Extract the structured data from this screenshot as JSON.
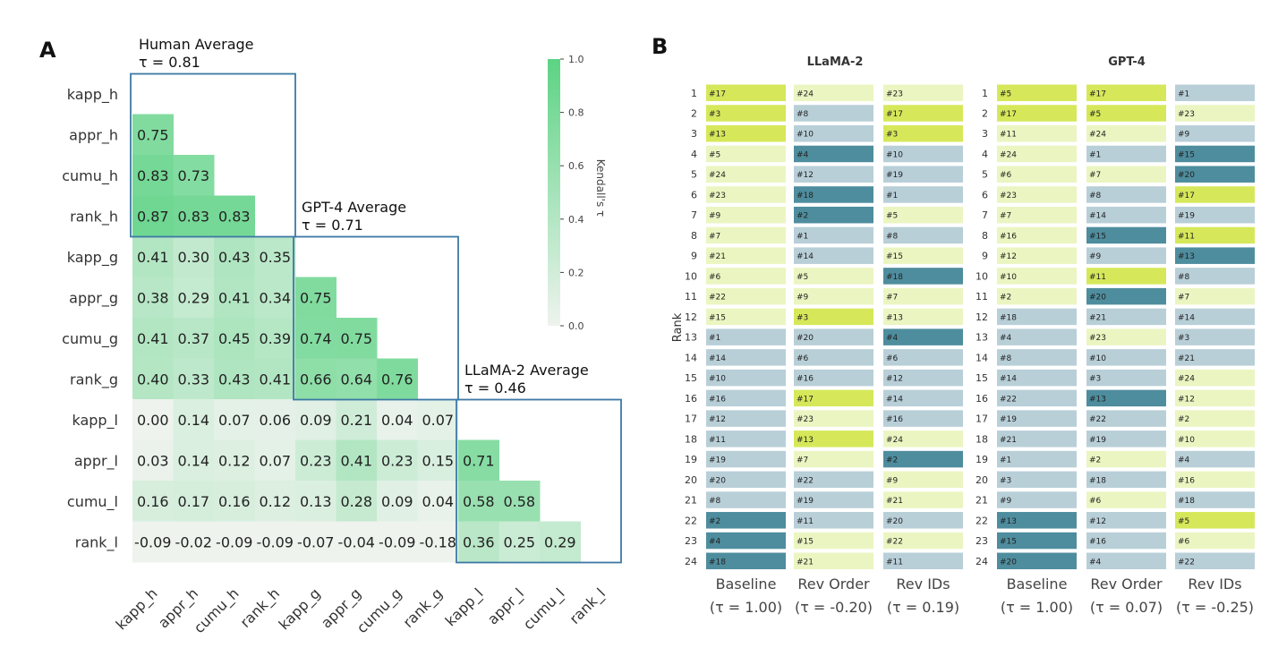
{
  "panels": {
    "a_letter": "A",
    "b_letter": "B"
  },
  "chart_data": [
    {
      "type": "heatmap",
      "panel": "A",
      "labels": [
        "kapp_h",
        "appr_h",
        "cumu_h",
        "rank_h",
        "kapp_g",
        "appr_g",
        "cumu_g",
        "rank_g",
        "kapp_l",
        "appr_l",
        "cumu_l",
        "rank_l"
      ],
      "triangle": "lower-strict",
      "values": [
        [],
        [
          0.75
        ],
        [
          0.83,
          0.73
        ],
        [
          0.87,
          0.83,
          0.83
        ],
        [
          0.41,
          0.3,
          0.43,
          0.35
        ],
        [
          0.38,
          0.29,
          0.41,
          0.34,
          0.75
        ],
        [
          0.41,
          0.37,
          0.45,
          0.39,
          0.74,
          0.75
        ],
        [
          0.4,
          0.33,
          0.43,
          0.41,
          0.66,
          0.64,
          0.76
        ],
        [
          0.0,
          0.14,
          0.07,
          0.06,
          0.09,
          0.21,
          0.04,
          0.07
        ],
        [
          0.03,
          0.14,
          0.12,
          0.07,
          0.23,
          0.41,
          0.23,
          0.15,
          0.71
        ],
        [
          0.16,
          0.17,
          0.16,
          0.12,
          0.13,
          0.28,
          0.09,
          0.04,
          0.58,
          0.58
        ],
        [
          -0.09,
          -0.02,
          -0.09,
          -0.09,
          -0.07,
          -0.04,
          -0.09,
          -0.18,
          0.36,
          0.25,
          0.29
        ]
      ],
      "colorbar": {
        "label": "Kendall's τ",
        "range": [
          0.0,
          1.0
        ],
        "ticks": [
          "0.0",
          "0.2",
          "0.4",
          "0.6",
          "0.8",
          "1.0"
        ],
        "color_low": "#eef3ee",
        "color_high": "#5cd384"
      },
      "groups": [
        {
          "title": "Human Average",
          "tau": "τ = 0.81",
          "rows": [
            0,
            3
          ]
        },
        {
          "title": "GPT-4 Average",
          "tau": "τ = 0.71",
          "rows": [
            4,
            7
          ]
        },
        {
          "title": "LLaMA-2 Average",
          "tau": "τ = 0.46",
          "rows": [
            8,
            11
          ]
        }
      ],
      "box_color": "#3c78a4"
    },
    {
      "type": "table",
      "panel": "B",
      "ylabel": "Rank",
      "ranks": [
        "1",
        "2",
        "3",
        "4",
        "5",
        "6",
        "7",
        "8",
        "9",
        "10",
        "11",
        "12",
        "13",
        "14",
        "15",
        "16",
        "17",
        "18",
        "19",
        "20",
        "21",
        "22",
        "23",
        "24"
      ],
      "shade_scale": [
        "#ebf5c1",
        "#b8cfd8",
        "#d6e85a",
        "#4e8d9e"
      ],
      "models": [
        {
          "title": "LLaMA-2",
          "columns": [
            {
              "label": "Baseline",
              "tau": "(τ = 1.00)",
              "ids": [
                "#17",
                "#3",
                "#13",
                "#5",
                "#24",
                "#23",
                "#9",
                "#7",
                "#21",
                "#6",
                "#22",
                "#15",
                "#1",
                "#14",
                "#10",
                "#16",
                "#12",
                "#11",
                "#19",
                "#20",
                "#8",
                "#2",
                "#4",
                "#18"
              ],
              "shades": [
                2,
                2,
                2,
                0,
                0,
                0,
                0,
                0,
                0,
                0,
                0,
                0,
                1,
                1,
                1,
                1,
                1,
                1,
                1,
                1,
                1,
                3,
                3,
                3
              ]
            },
            {
              "label": "Rev Order",
              "tau": "(τ = -0.20)",
              "ids": [
                "#24",
                "#8",
                "#10",
                "#4",
                "#12",
                "#18",
                "#2",
                "#1",
                "#14",
                "#5",
                "#9",
                "#3",
                "#20",
                "#6",
                "#16",
                "#17",
                "#23",
                "#13",
                "#7",
                "#22",
                "#19",
                "#11",
                "#15",
                "#21"
              ],
              "shades": [
                0,
                1,
                1,
                3,
                1,
                3,
                3,
                1,
                1,
                0,
                0,
                2,
                1,
                1,
                1,
                2,
                0,
                2,
                0,
                1,
                1,
                1,
                0,
                0
              ]
            },
            {
              "label": "Rev IDs",
              "tau": "(τ = 0.19)",
              "ids": [
                "#23",
                "#17",
                "#3",
                "#10",
                "#19",
                "#1",
                "#5",
                "#8",
                "#15",
                "#18",
                "#7",
                "#13",
                "#4",
                "#6",
                "#12",
                "#14",
                "#16",
                "#24",
                "#2",
                "#9",
                "#21",
                "#20",
                "#22",
                "#11"
              ],
              "shades": [
                0,
                2,
                2,
                1,
                1,
                1,
                0,
                1,
                0,
                3,
                0,
                0,
                3,
                1,
                1,
                1,
                1,
                0,
                3,
                0,
                0,
                1,
                0,
                1
              ]
            }
          ]
        },
        {
          "title": "GPT-4",
          "columns": [
            {
              "label": "Baseline",
              "tau": "(τ = 1.00)",
              "ids": [
                "#5",
                "#17",
                "#11",
                "#24",
                "#6",
                "#23",
                "#7",
                "#16",
                "#12",
                "#10",
                "#2",
                "#18",
                "#4",
                "#8",
                "#14",
                "#22",
                "#19",
                "#21",
                "#1",
                "#3",
                "#9",
                "#13",
                "#15",
                "#20"
              ],
              "shades": [
                2,
                2,
                0,
                0,
                0,
                0,
                0,
                0,
                0,
                0,
                0,
                1,
                1,
                1,
                1,
                1,
                1,
                1,
                1,
                1,
                1,
                3,
                3,
                3
              ]
            },
            {
              "label": "Rev Order",
              "tau": "(τ = 0.07)",
              "ids": [
                "#17",
                "#5",
                "#24",
                "#1",
                "#7",
                "#8",
                "#14",
                "#15",
                "#9",
                "#11",
                "#20",
                "#21",
                "#23",
                "#10",
                "#3",
                "#13",
                "#22",
                "#19",
                "#2",
                "#18",
                "#6",
                "#12",
                "#16",
                "#4"
              ],
              "shades": [
                2,
                2,
                0,
                1,
                0,
                1,
                1,
                3,
                1,
                2,
                3,
                1,
                0,
                1,
                1,
                3,
                1,
                1,
                0,
                1,
                0,
                1,
                1,
                1
              ]
            },
            {
              "label": "Rev IDs",
              "tau": "(τ = -0.25)",
              "ids": [
                "#1",
                "#23",
                "#9",
                "#15",
                "#20",
                "#17",
                "#19",
                "#11",
                "#13",
                "#8",
                "#7",
                "#14",
                "#3",
                "#21",
                "#24",
                "#12",
                "#2",
                "#10",
                "#4",
                "#16",
                "#18",
                "#5",
                "#6",
                "#22"
              ],
              "shades": [
                1,
                0,
                1,
                3,
                3,
                2,
                1,
                2,
                3,
                1,
                0,
                1,
                1,
                1,
                0,
                0,
                0,
                0,
                1,
                0,
                1,
                2,
                0,
                1
              ]
            }
          ]
        }
      ]
    }
  ]
}
